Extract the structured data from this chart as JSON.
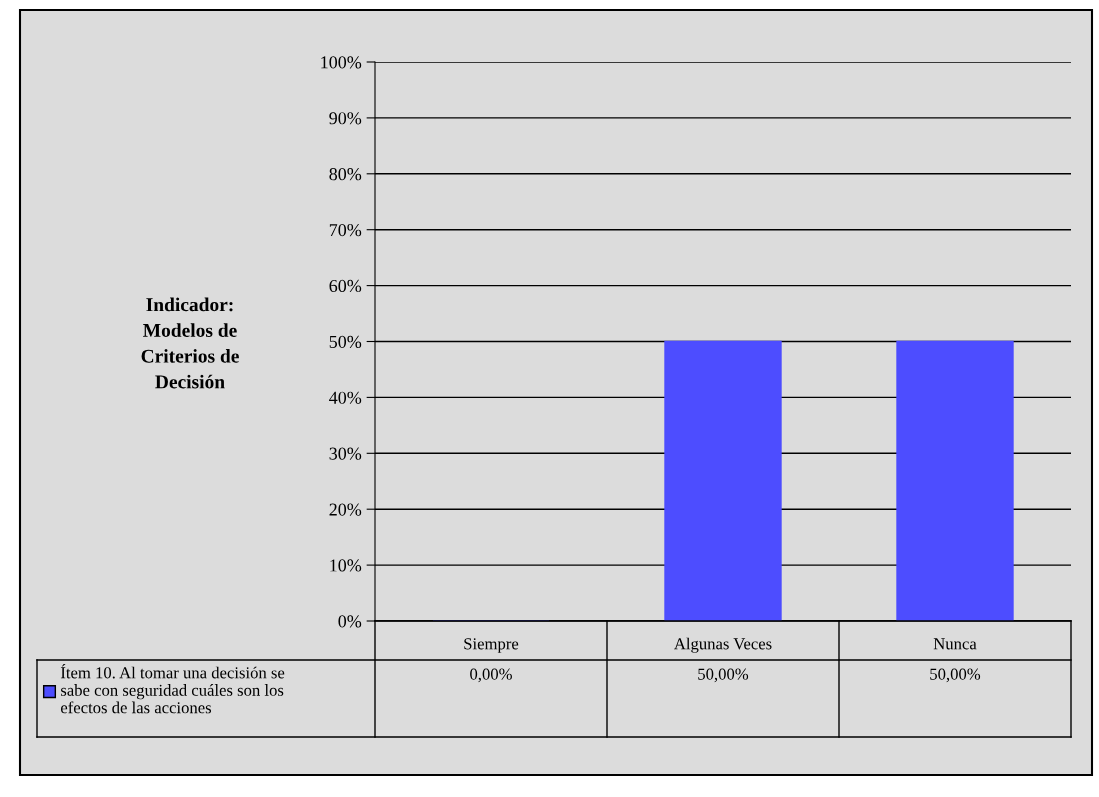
{
  "chart_data": {
    "type": "bar",
    "ylabel": "Indicador:\nModelos de\nCriterios de\nDecisión",
    "categories": [
      "Siempre",
      "Algunas Veces",
      "Nunca"
    ],
    "series": [
      {
        "name": "Ítem 10. Al tomar una decisión se\nsabe con seguridad cuáles son los\nefectos de las acciones",
        "color": "#4d4dff",
        "values": [
          0,
          50,
          50
        ],
        "value_labels": [
          "0,00%",
          "50,00%",
          "50,00%"
        ]
      }
    ],
    "ylim": [
      0,
      100
    ],
    "yticks": [
      {
        "value": 0,
        "label": "0%"
      },
      {
        "value": 10,
        "label": "10%"
      },
      {
        "value": 20,
        "label": "20%"
      },
      {
        "value": 30,
        "label": "30%"
      },
      {
        "value": 40,
        "label": "40%"
      },
      {
        "value": 50,
        "label": "50%"
      },
      {
        "value": 60,
        "label": "60%"
      },
      {
        "value": 70,
        "label": "70%"
      },
      {
        "value": 80,
        "label": "80%"
      },
      {
        "value": 90,
        "label": "90%"
      },
      {
        "value": 100,
        "label": "100%"
      }
    ],
    "grid": "y",
    "legend": "bottom"
  }
}
